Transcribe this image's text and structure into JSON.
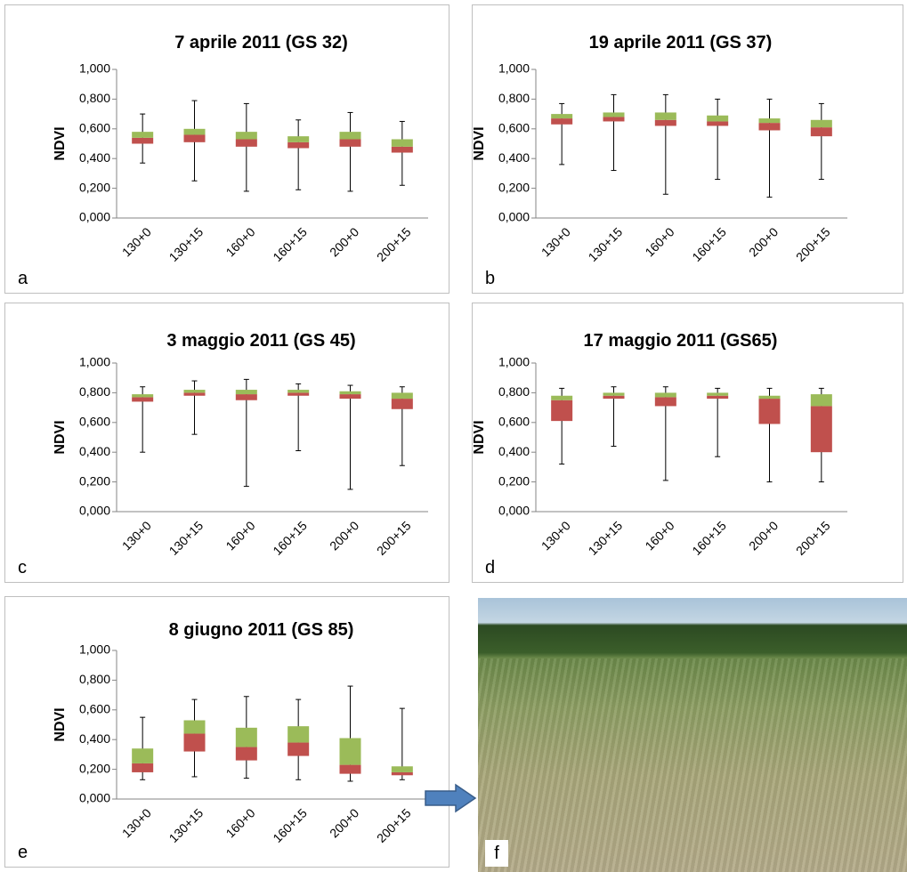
{
  "chart_data": [
    {
      "type": "box",
      "panel": "a",
      "title": "7 aprile 2011 (GS 32)",
      "ylabel": "NDVI",
      "categories": [
        "130+0",
        "130+15",
        "160+0",
        "160+15",
        "200+0",
        "200+15"
      ],
      "min": [
        0.37,
        0.25,
        0.18,
        0.19,
        0.18,
        0.22
      ],
      "q1": [
        0.5,
        0.51,
        0.48,
        0.47,
        0.48,
        0.44
      ],
      "median": [
        0.54,
        0.56,
        0.53,
        0.51,
        0.53,
        0.48
      ],
      "q3": [
        0.58,
        0.6,
        0.58,
        0.55,
        0.58,
        0.53
      ],
      "max": [
        0.7,
        0.79,
        0.77,
        0.66,
        0.71,
        0.65
      ],
      "lower_color": "#c0504d",
      "upper_color": "#9bbb59",
      "ylim": [
        0,
        1
      ],
      "yticks": [
        {
          "value": 0,
          "label": "0,000"
        },
        {
          "value": 0.2,
          "label": "0,200"
        },
        {
          "value": 0.4,
          "label": "0,400"
        },
        {
          "value": 0.6,
          "label": "0,600"
        },
        {
          "value": 0.8,
          "label": "0,800"
        },
        {
          "value": 1,
          "label": "1,000"
        }
      ]
    },
    {
      "type": "box",
      "panel": "b",
      "title": "19 aprile 2011 (GS 37)",
      "ylabel": "NDVI",
      "categories": [
        "130+0",
        "130+15",
        "160+0",
        "160+15",
        "200+0",
        "200+15"
      ],
      "min": [
        0.36,
        0.32,
        0.16,
        0.26,
        0.14,
        0.26
      ],
      "q1": [
        0.63,
        0.65,
        0.62,
        0.62,
        0.59,
        0.55
      ],
      "median": [
        0.67,
        0.68,
        0.66,
        0.65,
        0.64,
        0.61
      ],
      "q3": [
        0.7,
        0.71,
        0.71,
        0.69,
        0.67,
        0.66
      ],
      "max": [
        0.77,
        0.83,
        0.83,
        0.8,
        0.8,
        0.77
      ],
      "lower_color": "#c0504d",
      "upper_color": "#9bbb59",
      "ylim": [
        0,
        1
      ],
      "yticks": [
        {
          "value": 0,
          "label": "0,000"
        },
        {
          "value": 0.2,
          "label": "0,200"
        },
        {
          "value": 0.4,
          "label": "0,400"
        },
        {
          "value": 0.6,
          "label": "0,600"
        },
        {
          "value": 0.8,
          "label": "0,800"
        },
        {
          "value": 1,
          "label": "1,000"
        }
      ]
    },
    {
      "type": "box",
      "panel": "c",
      "title": "3 maggio 2011 (GS 45)",
      "ylabel": "NDVI",
      "categories": [
        "130+0",
        "130+15",
        "160+0",
        "160+15",
        "200+0",
        "200+15"
      ],
      "min": [
        0.4,
        0.52,
        0.17,
        0.41,
        0.15,
        0.31
      ],
      "q1": [
        0.74,
        0.78,
        0.75,
        0.78,
        0.76,
        0.69
      ],
      "median": [
        0.77,
        0.8,
        0.79,
        0.8,
        0.79,
        0.76
      ],
      "q3": [
        0.79,
        0.82,
        0.82,
        0.82,
        0.81,
        0.8
      ],
      "max": [
        0.84,
        0.88,
        0.89,
        0.86,
        0.85,
        0.84
      ],
      "lower_color": "#c0504d",
      "upper_color": "#9bbb59",
      "ylim": [
        0,
        1
      ],
      "yticks": [
        {
          "value": 0,
          "label": "0,000"
        },
        {
          "value": 0.2,
          "label": "0,200"
        },
        {
          "value": 0.4,
          "label": "0,400"
        },
        {
          "value": 0.6,
          "label": "0,600"
        },
        {
          "value": 0.8,
          "label": "0,800"
        },
        {
          "value": 1,
          "label": "1,000"
        }
      ]
    },
    {
      "type": "box",
      "panel": "d",
      "title": "17 maggio 2011 (GS65)",
      "ylabel": "NDVI",
      "categories": [
        "130+0",
        "130+15",
        "160+0",
        "160+15",
        "200+0",
        "200+15"
      ],
      "min": [
        0.32,
        0.44,
        0.21,
        0.37,
        0.2,
        0.2
      ],
      "q1": [
        0.61,
        0.76,
        0.71,
        0.76,
        0.59,
        0.4
      ],
      "median": [
        0.75,
        0.78,
        0.77,
        0.78,
        0.76,
        0.71
      ],
      "q3": [
        0.78,
        0.8,
        0.8,
        0.8,
        0.78,
        0.79
      ],
      "max": [
        0.83,
        0.84,
        0.84,
        0.83,
        0.83,
        0.83
      ],
      "lower_color": "#c0504d",
      "upper_color": "#9bbb59",
      "ylim": [
        0,
        1
      ],
      "yticks": [
        {
          "value": 0,
          "label": "0,000"
        },
        {
          "value": 0.2,
          "label": "0,200"
        },
        {
          "value": 0.4,
          "label": "0,400"
        },
        {
          "value": 0.6,
          "label": "0,600"
        },
        {
          "value": 0.8,
          "label": "0,800"
        },
        {
          "value": 1,
          "label": "1,000"
        }
      ]
    },
    {
      "type": "box",
      "panel": "e",
      "title": "8 giugno 2011 (GS 85)",
      "ylabel": "NDVI",
      "categories": [
        "130+0",
        "130+15",
        "160+0",
        "160+15",
        "200+0",
        "200+15"
      ],
      "min": [
        0.13,
        0.15,
        0.14,
        0.13,
        0.12,
        0.13
      ],
      "q1": [
        0.18,
        0.32,
        0.26,
        0.29,
        0.17,
        0.16
      ],
      "median": [
        0.24,
        0.44,
        0.35,
        0.38,
        0.23,
        0.18
      ],
      "q3": [
        0.34,
        0.53,
        0.48,
        0.49,
        0.41,
        0.22
      ],
      "max": [
        0.55,
        0.67,
        0.69,
        0.67,
        0.76,
        0.61
      ],
      "lower_color": "#c0504d",
      "upper_color": "#9bbb59",
      "ylim": [
        0,
        1
      ],
      "yticks": [
        {
          "value": 0,
          "label": "0,000"
        },
        {
          "value": 0.2,
          "label": "0,200"
        },
        {
          "value": 0.4,
          "label": "0,400"
        },
        {
          "value": 0.6,
          "label": "0,600"
        },
        {
          "value": 0.8,
          "label": "0,800"
        },
        {
          "value": 1,
          "label": "1,000"
        }
      ]
    }
  ],
  "photo": {
    "panel": "f"
  }
}
